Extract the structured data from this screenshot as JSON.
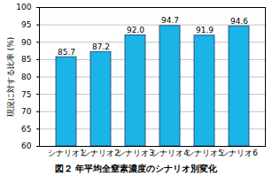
{
  "chart_data": {
    "type": "bar",
    "title": "図２ 年平均全窒素濃度のシナリオ別変化",
    "y_label": "現況に対する比率 (%)",
    "categories": [
      "シナリオ1",
      "シナリオ2",
      "シナリオ3",
      "シナリオ4",
      "シナリオ5",
      "シナリオ6"
    ],
    "values": [
      85.7,
      87.2,
      92.0,
      94.7,
      91.9,
      94.6
    ],
    "value_labels": [
      "85.7",
      "87.2",
      "92.0",
      "94.7",
      "91.9",
      "94.6"
    ],
    "data_labels": true,
    "color": "#1ab4e6",
    "ylim": [
      60,
      100
    ],
    "yticks": [
      60,
      65,
      70,
      75,
      80,
      85,
      90,
      95,
      100
    ],
    "grid": true
  }
}
